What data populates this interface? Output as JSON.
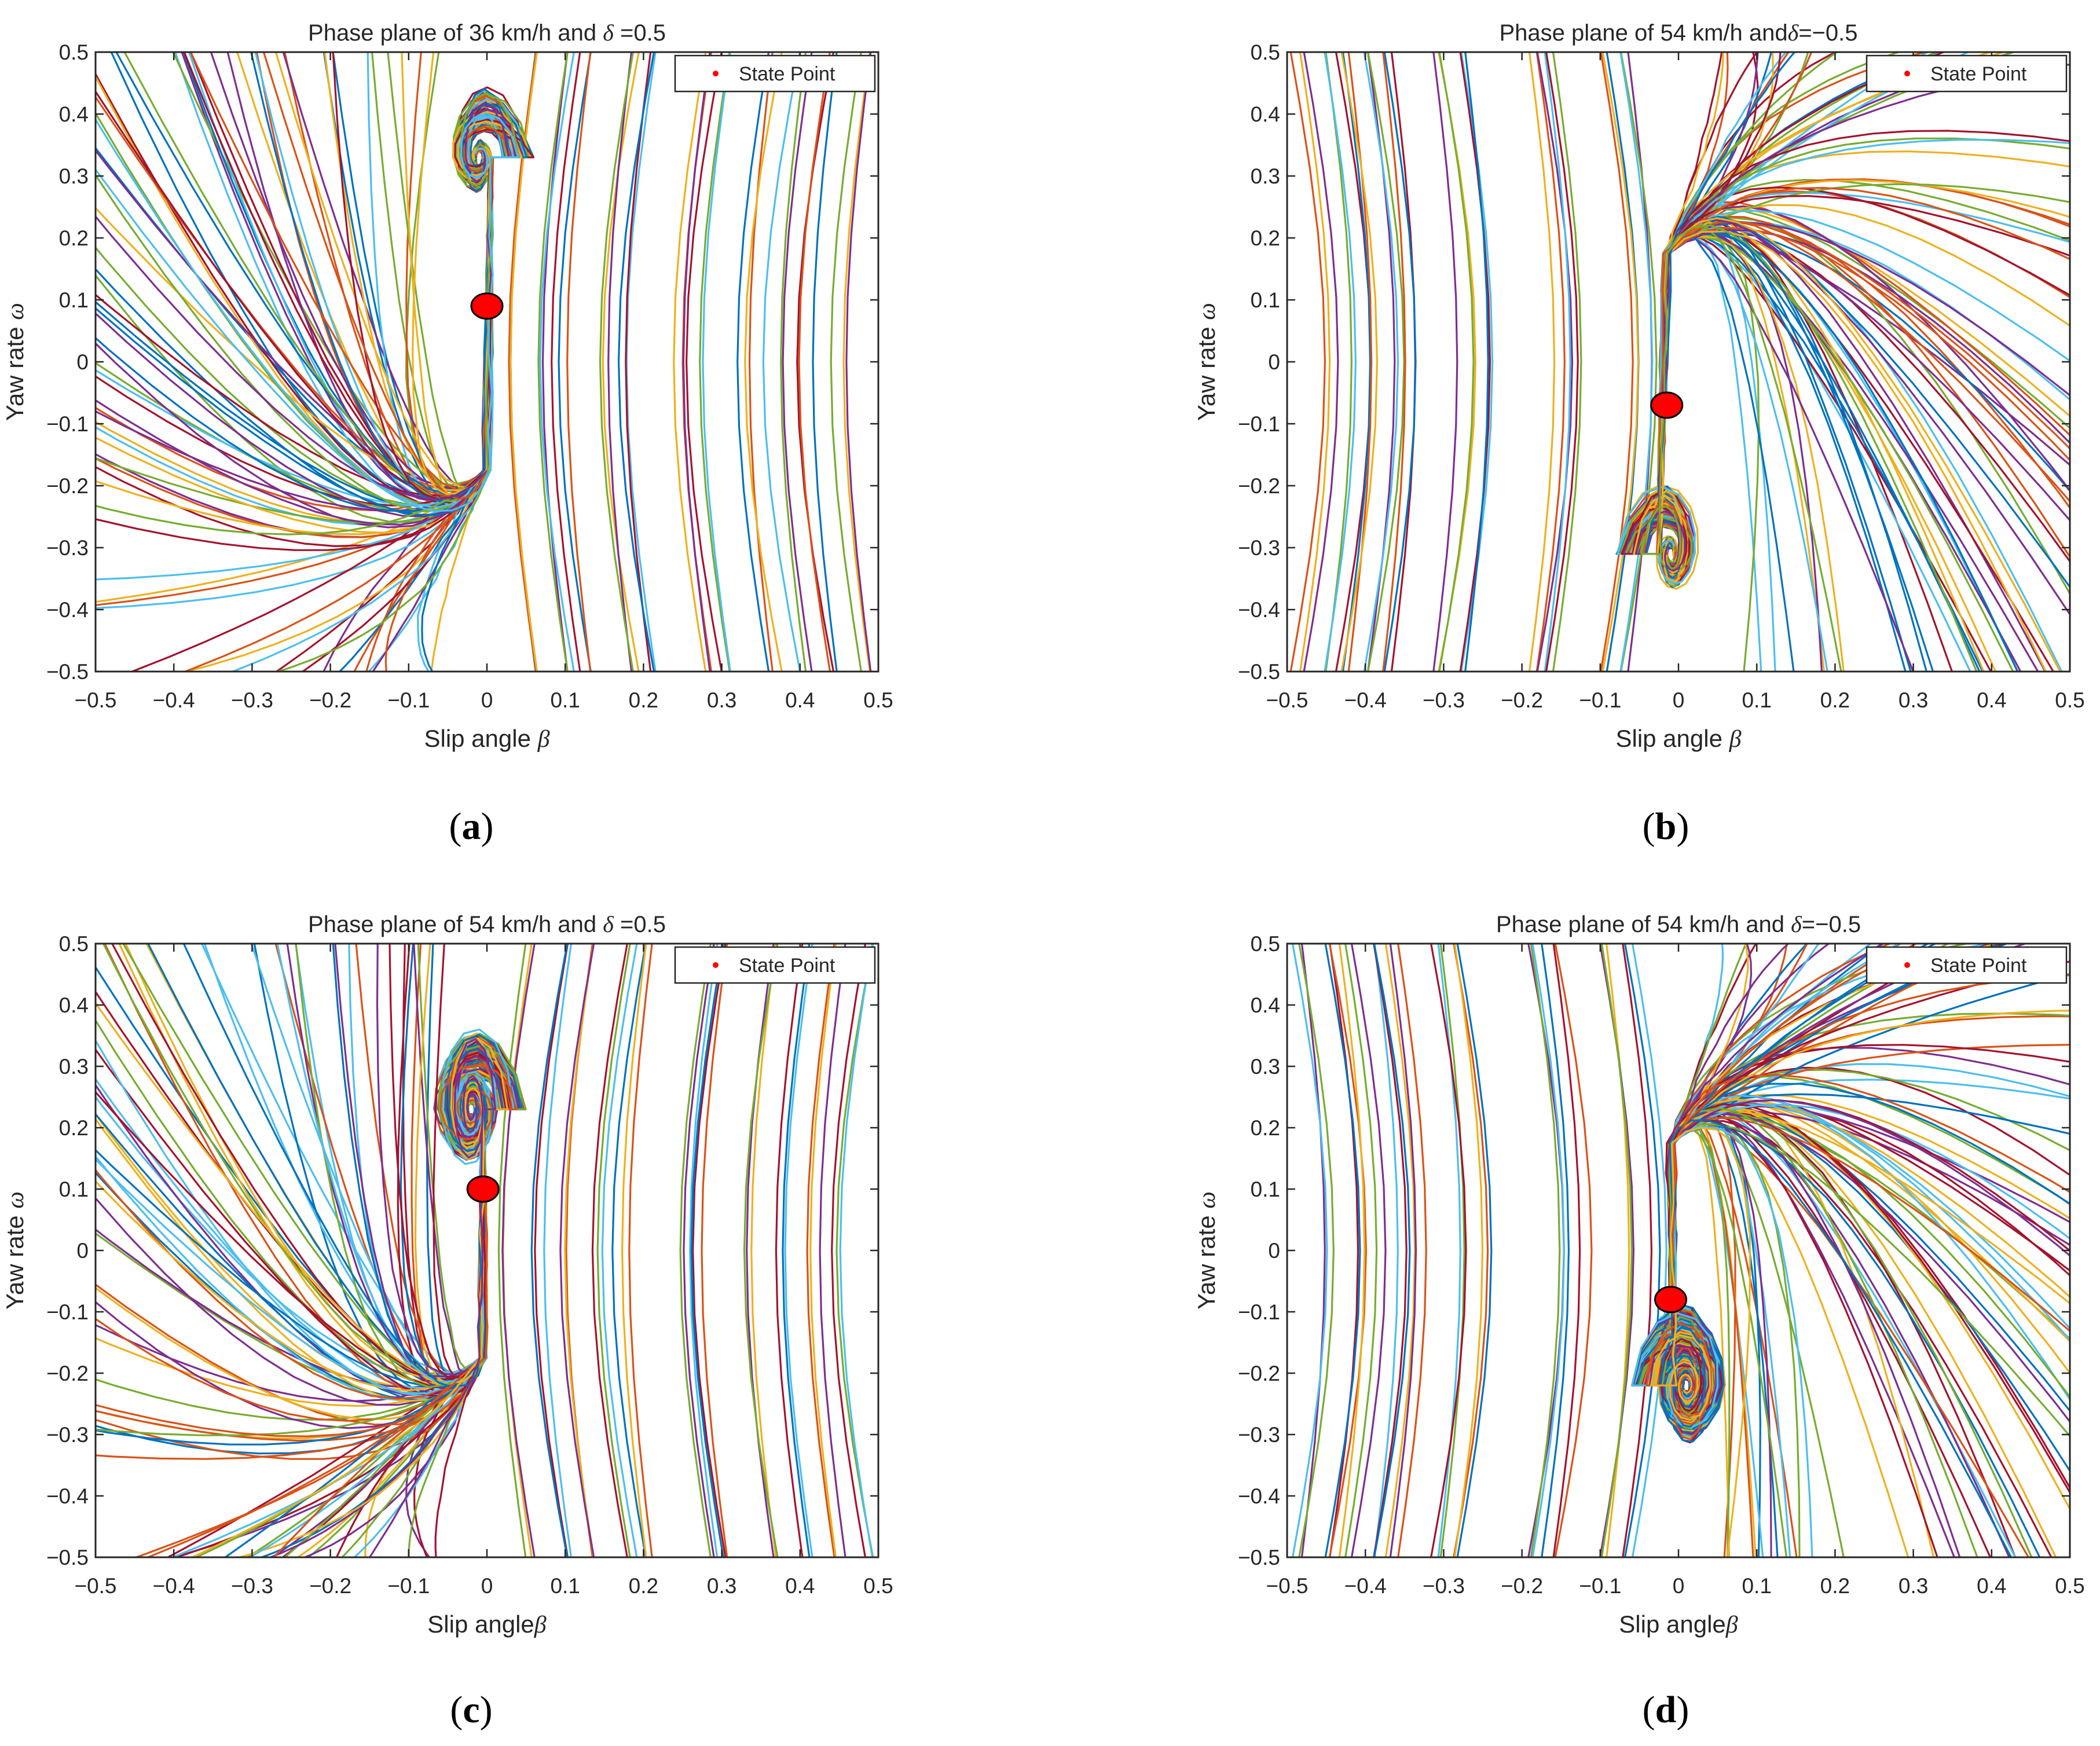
{
  "colors": {
    "series": [
      "#0072BD",
      "#D95319",
      "#EDB120",
      "#7E2F8E",
      "#77AC30",
      "#4DBEEE",
      "#A2142F"
    ],
    "state_point_fill": "#ff0000",
    "state_point_stroke": "#000000",
    "axis": "#262626"
  },
  "chart_data": [
    {
      "id": "a",
      "type": "line",
      "caption_letter": "a",
      "title_prefix": "Phase plane of 36 km/h and ",
      "title_symbol": "δ",
      "title_value": " =0.5",
      "xlabel_text": "Slip angle ",
      "xlabel_symbol": "β",
      "ylabel_text": "Yaw rate ",
      "ylabel_symbol": "ω",
      "xlim": [
        -0.5,
        0.5
      ],
      "ylim": [
        -0.5,
        0.5
      ],
      "x_ticks": [
        "-0.5",
        "-0.4",
        "-0.3",
        "-0.2",
        "-0.1",
        "0",
        "0.1",
        "0.2",
        "0.3",
        "0.4",
        "0.5"
      ],
      "y_ticks": [
        "-0.5",
        "-0.4",
        "-0.3",
        "-0.2",
        "-0.1",
        "0",
        "0.1",
        "0.2",
        "0.3",
        "0.4",
        "0.5"
      ],
      "legend": "State Point",
      "state_point": [
        0.0,
        0.09
      ],
      "field": {
        "focus": [
          -0.01,
          0.33
        ],
        "rotation": 1,
        "spiral_turns": 1.4,
        "lines": 90,
        "shift": 0
      }
    },
    {
      "id": "b",
      "type": "line",
      "caption_letter": "b",
      "title_prefix": "Phase plane of 54 km/h and",
      "title_symbol": "δ",
      "title_value": "=−0.5",
      "xlabel_text": "Slip angle ",
      "xlabel_symbol": "β",
      "ylabel_text": "Yaw rate ",
      "ylabel_symbol": "ω",
      "xlim": [
        -0.5,
        0.5
      ],
      "ylim": [
        -0.5,
        0.5
      ],
      "x_ticks": [
        "-0.5",
        "-0.4",
        "-0.3",
        "-0.2",
        "-0.1",
        "0",
        "0.1",
        "0.2",
        "0.3",
        "0.4",
        "0.5"
      ],
      "y_ticks": [
        "-0.5",
        "-0.4",
        "-0.3",
        "-0.2",
        "-0.1",
        "0",
        "0.1",
        "0.2",
        "0.3",
        "0.4",
        "0.5"
      ],
      "legend": "State Point",
      "state_point": [
        -0.015,
        -0.07
      ],
      "field": {
        "focus": [
          -0.01,
          -0.31
        ],
        "rotation": -1,
        "spiral_turns": 1.4,
        "lines": 95,
        "shift": 1
      }
    },
    {
      "id": "c",
      "type": "line",
      "caption_letter": "c",
      "title_prefix": "Phase plane of 54 km/h and ",
      "title_symbol": "δ",
      "title_value": " =0.5",
      "xlabel_text": "Slip angle",
      "xlabel_symbol": "β",
      "ylabel_text": "Yaw rate ",
      "ylabel_symbol": "ω",
      "xlim": [
        -0.5,
        0.5
      ],
      "ylim": [
        -0.5,
        0.5
      ],
      "x_ticks": [
        "-0.5",
        "-0.4",
        "-0.3",
        "-0.2",
        "-0.1",
        "0",
        "0.1",
        "0.2",
        "0.3",
        "0.4",
        "0.5"
      ],
      "y_ticks": [
        "-0.5",
        "-0.4",
        "-0.3",
        "-0.2",
        "-0.1",
        "0",
        "0.1",
        "0.2",
        "0.3",
        "0.4",
        "0.5"
      ],
      "legend": "State Point",
      "state_point": [
        -0.005,
        0.1
      ],
      "field": {
        "focus": [
          -0.02,
          0.23
        ],
        "rotation": 1,
        "spiral_turns": 2.6,
        "lines": 100,
        "shift": 2
      }
    },
    {
      "id": "d",
      "type": "line",
      "caption_letter": "d",
      "title_prefix": "Phase plane of 54 km/h and ",
      "title_symbol": "δ",
      "title_value": "=−0.5",
      "xlabel_text": "Slip angle",
      "xlabel_symbol": "β",
      "ylabel_text": "Yaw rate ",
      "ylabel_symbol": "ω",
      "xlim": [
        -0.5,
        0.5
      ],
      "ylim": [
        -0.5,
        0.5
      ],
      "x_ticks": [
        "-0.5",
        "-0.4",
        "-0.3",
        "-0.2",
        "-0.1",
        "0",
        "0.1",
        "0.2",
        "0.3",
        "0.4",
        "0.5"
      ],
      "y_ticks": [
        "-0.5",
        "-0.4",
        "-0.3",
        "-0.2",
        "-0.1",
        "0",
        "0.1",
        "0.2",
        "0.3",
        "0.4",
        "0.5"
      ],
      "legend": "State Point",
      "state_point": [
        -0.01,
        -0.08
      ],
      "field": {
        "focus": [
          0.01,
          -0.22
        ],
        "rotation": -1,
        "spiral_turns": 2.8,
        "lines": 105,
        "shift": 3
      }
    }
  ]
}
